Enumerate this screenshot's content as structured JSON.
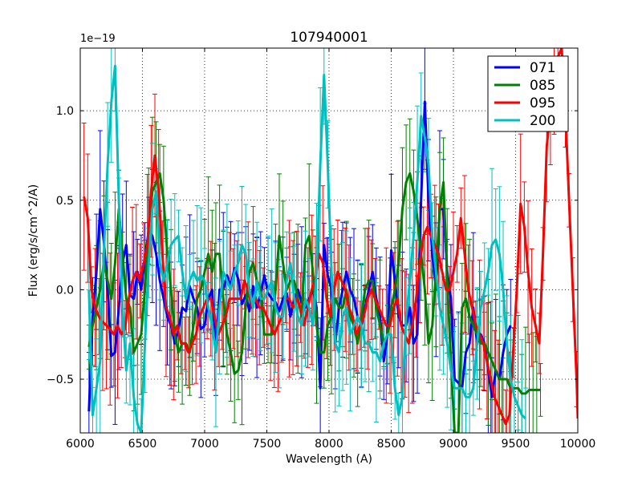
{
  "chart_data": {
    "type": "line",
    "title": "107940001",
    "xlabel": "Wavelength (A)",
    "ylabel": "Flux (erg/s/cm^2/A)",
    "offset_text": "1e−19",
    "xlim": [
      6000,
      10000
    ],
    "ylim": [
      -0.8,
      1.35
    ],
    "xticks": [
      6000,
      6500,
      7000,
      7500,
      8000,
      8500,
      9000,
      9500,
      10000
    ],
    "xtick_labels": [
      "6000",
      "6500",
      "7000",
      "7500",
      "8000",
      "8500",
      "9000",
      "9500",
      "10000"
    ],
    "yticks": [
      -0.5,
      0.0,
      0.5,
      1.0
    ],
    "ytick_labels": [
      "−0.5",
      "0.0",
      "0.5",
      "1.0"
    ],
    "grid": true,
    "legend_position": "top-right",
    "series": [
      {
        "name": "071",
        "color": "#0000ff",
        "x": [
          6070,
          6100,
          6130,
          6160,
          6190,
          6220,
          6250,
          6280,
          6310,
          6340,
          6370,
          6400,
          6430,
          6460,
          6490,
          6520,
          6550,
          6580,
          6610,
          6640,
          6670,
          6700,
          6730,
          6760,
          6790,
          6820,
          6850,
          6880,
          6910,
          6940,
          6970,
          7000,
          7030,
          7060,
          7090,
          7120,
          7150,
          7180,
          7210,
          7240,
          7270,
          7300,
          7330,
          7360,
          7390,
          7420,
          7450,
          7480,
          7510,
          7540,
          7570,
          7600,
          7630,
          7660,
          7690,
          7720,
          7750,
          7780,
          7810,
          7840,
          7870,
          7900,
          7930,
          7960,
          7990,
          8020,
          8050,
          8080,
          8110,
          8140,
          8170,
          8200,
          8230,
          8260,
          8290,
          8320,
          8350,
          8380,
          8410,
          8440,
          8470,
          8500,
          8530,
          8560,
          8590,
          8620,
          8650,
          8680,
          8710,
          8740,
          8770,
          8800,
          8830,
          8860,
          8890,
          8920,
          8950,
          8980,
          9010,
          9040,
          9070,
          9100,
          9130,
          9160,
          9190,
          9220,
          9250,
          9280,
          9310,
          9340,
          9370,
          9400,
          9430,
          9460
        ],
        "y": [
          -0.68,
          -0.15,
          0.1,
          0.45,
          0.27,
          0.0,
          -0.37,
          -0.35,
          -0.1,
          0.15,
          0.25,
          -0.03,
          -0.05,
          0.1,
          0.0,
          0.18,
          0.33,
          0.3,
          0.2,
          0.05,
          -0.05,
          -0.15,
          -0.2,
          -0.3,
          -0.22,
          -0.1,
          -0.12,
          0.02,
          -0.05,
          -0.1,
          -0.22,
          -0.2,
          -0.05,
          0.0,
          -0.35,
          0.0,
          0.0,
          0.08,
          0.02,
          0.12,
          0.06,
          -0.08,
          -0.03,
          -0.12,
          0.02,
          -0.1,
          -0.02,
          0.08,
          -0.02,
          -0.05,
          -0.07,
          -0.12,
          -0.05,
          -0.02,
          -0.15,
          -0.05,
          0.0,
          -0.07,
          -0.1,
          -0.05,
          0.0,
          -0.1,
          -0.55,
          0.25,
          0.08,
          0.0,
          -0.3,
          -0.1,
          0.0,
          0.1,
          0.0,
          -0.05,
          -0.15,
          -0.2,
          -0.1,
          0.0,
          0.1,
          -0.05,
          -0.15,
          -0.4,
          -0.25,
          0.22,
          0.05,
          -0.15,
          -0.2,
          -0.2,
          -0.1,
          -0.3,
          -0.25,
          0.5,
          1.05,
          0.5,
          0.2,
          0.0,
          0.45,
          0.45,
          0.1,
          -0.05,
          -0.5,
          -0.52,
          -0.55,
          -0.35,
          -0.3,
          -0.1,
          -0.3,
          -0.25,
          -0.3,
          -0.45,
          -0.6,
          -0.45,
          -0.5,
          -0.35,
          -0.25,
          -0.2
        ]
      },
      {
        "name": "085",
        "color": "#008000",
        "x": [
          6070,
          6100,
          6130,
          6160,
          6190,
          6220,
          6250,
          6280,
          6310,
          6340,
          6370,
          6400,
          6430,
          6460,
          6490,
          6520,
          6550,
          6580,
          6610,
          6640,
          6670,
          6700,
          6730,
          6760,
          6790,
          6820,
          6850,
          6880,
          6910,
          6940,
          6970,
          7000,
          7030,
          7060,
          7090,
          7120,
          7150,
          7180,
          7210,
          7240,
          7270,
          7300,
          7330,
          7360,
          7390,
          7420,
          7450,
          7480,
          7510,
          7540,
          7570,
          7600,
          7630,
          7660,
          7690,
          7720,
          7750,
          7780,
          7810,
          7840,
          7870,
          7900,
          7930,
          7960,
          7990,
          8020,
          8050,
          8080,
          8110,
          8140,
          8170,
          8200,
          8230,
          8260,
          8290,
          8320,
          8350,
          8380,
          8410,
          8440,
          8470,
          8500,
          8530,
          8560,
          8590,
          8620,
          8650,
          8680,
          8710,
          8740,
          8770,
          8800,
          8830,
          8860,
          8890,
          8920,
          8950,
          8980,
          9010,
          9040,
          9070,
          9100,
          9130,
          9160,
          9190,
          9220,
          9250,
          9280,
          9310,
          9340,
          9370,
          9400,
          9430,
          9460,
          9490,
          9520,
          9550,
          9580,
          9610,
          9640,
          9670,
          9700
        ],
        "y": [
          -0.32,
          -0.2,
          -0.1,
          0.0,
          0.15,
          0.05,
          -0.05,
          0.15,
          0.45,
          0.2,
          -0.05,
          -0.1,
          -0.35,
          -0.3,
          -0.25,
          0.0,
          0.35,
          0.55,
          0.6,
          0.65,
          0.5,
          0.2,
          0.0,
          -0.25,
          -0.35,
          -0.3,
          -0.3,
          -0.35,
          -0.2,
          -0.05,
          0.0,
          0.1,
          0.2,
          0.1,
          0.2,
          0.2,
          -0.05,
          -0.25,
          -0.35,
          -0.47,
          -0.45,
          -0.35,
          -0.1,
          0.1,
          0.15,
          0.05,
          0.0,
          -0.25,
          -0.25,
          -0.25,
          0.0,
          0.3,
          0.15,
          0.0,
          0.05,
          0.05,
          -0.05,
          -0.15,
          0.25,
          0.3,
          0.1,
          -0.2,
          -0.35,
          -0.35,
          -0.2,
          -0.15,
          -0.05,
          -0.1,
          -0.1,
          0.0,
          -0.15,
          -0.2,
          -0.3,
          -0.15,
          0.0,
          0.05,
          0.05,
          -0.1,
          -0.2,
          -0.3,
          -0.25,
          -0.1,
          0.0,
          0.15,
          0.45,
          0.6,
          0.65,
          0.55,
          0.4,
          0.2,
          0.0,
          -0.3,
          -0.2,
          0.1,
          0.45,
          0.6,
          0.05,
          -0.4,
          -0.8,
          -0.8,
          -0.1,
          -0.05,
          -0.15,
          -0.2,
          -0.25,
          -0.3,
          -0.3,
          -0.35,
          -0.4,
          -0.45,
          -0.5,
          -0.5,
          -0.5,
          -0.55,
          -0.55,
          -0.55,
          -0.58,
          -0.58,
          -0.56,
          -0.56,
          -0.56,
          -0.56
        ]
      },
      {
        "name": "095",
        "color": "#ff0000",
        "x": [
          6030,
          6060,
          6090,
          6120,
          6150,
          6180,
          6210,
          6240,
          6270,
          6300,
          6330,
          6360,
          6390,
          6420,
          6450,
          6480,
          6510,
          6540,
          6570,
          6600,
          6630,
          6660,
          6690,
          6720,
          6750,
          6780,
          6810,
          6840,
          6870,
          6900,
          6930,
          6960,
          6990,
          7020,
          7050,
          7080,
          7110,
          7140,
          7170,
          7200,
          7230,
          7260,
          7290,
          7320,
          7350,
          7380,
          7410,
          7440,
          7470,
          7500,
          7530,
          7560,
          7590,
          7620,
          7650,
          7680,
          7710,
          7740,
          7770,
          7800,
          7830,
          7860,
          7890,
          7920,
          7950,
          7980,
          8010,
          8040,
          8070,
          8100,
          8130,
          8160,
          8190,
          8220,
          8250,
          8280,
          8310,
          8340,
          8370,
          8400,
          8430,
          8460,
          8490,
          8520,
          8550,
          8580,
          8610,
          8640,
          8670,
          8700,
          8730,
          8760,
          8790,
          8820,
          8850,
          8880,
          8910,
          8940,
          8970,
          9000,
          9030,
          9060,
          9090,
          9120,
          9150,
          9180,
          9210,
          9240,
          9270,
          9300,
          9330,
          9360,
          9390,
          9420,
          9450,
          9480,
          9510,
          9540,
          9570,
          9600,
          9630,
          9660,
          9690,
          9720,
          9750,
          9780,
          9810,
          9840,
          9870,
          9900,
          9930,
          9960,
          9990,
          10000
        ],
        "y": [
          0.52,
          0.4,
          0.0,
          -0.1,
          -0.15,
          -0.18,
          -0.2,
          -0.22,
          -0.25,
          -0.2,
          -0.25,
          -0.22,
          -0.05,
          0.05,
          0.1,
          0.05,
          0.15,
          0.25,
          0.55,
          0.75,
          0.55,
          0.2,
          -0.1,
          -0.15,
          -0.25,
          -0.2,
          -0.3,
          -0.3,
          -0.35,
          -0.3,
          -0.25,
          -0.15,
          -0.1,
          -0.05,
          -0.05,
          -0.15,
          -0.25,
          -0.2,
          -0.15,
          -0.05,
          -0.05,
          -0.05,
          -0.05,
          0.05,
          0.0,
          -0.1,
          -0.05,
          -0.1,
          -0.1,
          -0.15,
          -0.2,
          -0.25,
          -0.2,
          -0.15,
          -0.05,
          -0.05,
          -0.1,
          -0.05,
          -0.1,
          -0.2,
          -0.1,
          0.0,
          0.05,
          0.2,
          0.15,
          -0.05,
          -0.15,
          0.0,
          0.1,
          0.05,
          0.0,
          -0.1,
          -0.15,
          -0.25,
          -0.2,
          -0.15,
          -0.05,
          0.0,
          -0.05,
          -0.1,
          -0.15,
          -0.2,
          -0.2,
          -0.1,
          -0.05,
          -0.2,
          -0.25,
          -0.3,
          -0.2,
          -0.05,
          0.15,
          0.3,
          0.35,
          0.3,
          0.25,
          0.2,
          0.1,
          0.0,
          0.0,
          0.1,
          0.2,
          0.4,
          0.2,
          0.0,
          -0.1,
          -0.2,
          -0.25,
          -0.3,
          -0.4,
          -0.5,
          -0.6,
          -0.65,
          -0.7,
          -0.75,
          -0.7,
          -0.35,
          0.0,
          0.48,
          0.35,
          0.1,
          -0.1,
          -0.2,
          -0.3,
          0.2,
          0.8,
          1.0,
          1.2,
          1.3,
          1.35,
          1.0,
          0.5,
          0.0,
          -0.5,
          -0.72
        ]
      },
      {
        "name": "200",
        "color": "#00bfbf",
        "x": [
          6070,
          6100,
          6130,
          6160,
          6190,
          6220,
          6250,
          6280,
          6310,
          6340,
          6370,
          6400,
          6430,
          6460,
          6490,
          6520,
          6550,
          6580,
          6610,
          6640,
          6670,
          6700,
          6730,
          6760,
          6790,
          6820,
          6850,
          6880,
          6910,
          6940,
          6970,
          7000,
          7030,
          7060,
          7090,
          7120,
          7150,
          7180,
          7210,
          7240,
          7270,
          7300,
          7330,
          7360,
          7390,
          7420,
          7450,
          7480,
          7510,
          7540,
          7570,
          7600,
          7630,
          7660,
          7690,
          7720,
          7750,
          7780,
          7810,
          7840,
          7870,
          7900,
          7930,
          7960,
          7990,
          8020,
          8050,
          8080,
          8110,
          8140,
          8170,
          8200,
          8230,
          8260,
          8290,
          8320,
          8350,
          8380,
          8410,
          8440,
          8470,
          8500,
          8530,
          8560,
          8590,
          8620,
          8650,
          8680,
          8710,
          8740,
          8770,
          8800,
          8830,
          8860,
          8890,
          8920,
          8950,
          8980,
          9010,
          9040,
          9070,
          9100,
          9130,
          9160,
          9190,
          9220,
          9250,
          9280,
          9310,
          9340,
          9370,
          9400,
          9430,
          9460,
          9490,
          9520,
          9550,
          9580
        ],
        "y": [
          0.0,
          -0.7,
          -0.55,
          -0.4,
          0.2,
          0.7,
          1.05,
          1.25,
          0.5,
          -0.1,
          -0.45,
          -0.3,
          -0.6,
          -0.75,
          -0.8,
          -0.3,
          0.15,
          0.45,
          0.55,
          0.15,
          0.05,
          0.15,
          0.25,
          0.28,
          0.3,
          0.1,
          -0.05,
          0.05,
          0.1,
          0.05,
          0.08,
          0.05,
          -0.1,
          -0.2,
          -0.35,
          -0.1,
          0.1,
          0.05,
          0.0,
          0.1,
          0.15,
          0.25,
          0.2,
          0.0,
          -0.1,
          0.05,
          -0.05,
          -0.05,
          0.0,
          0.05,
          -0.1,
          -0.15,
          -0.15,
          0.05,
          0.15,
          -0.05,
          -0.15,
          -0.2,
          -0.05,
          -0.1,
          -0.2,
          0.1,
          0.7,
          1.2,
          0.7,
          0.1,
          -0.3,
          -0.35,
          -0.15,
          -0.1,
          -0.25,
          -0.2,
          -0.15,
          -0.2,
          -0.3,
          -0.3,
          -0.35,
          -0.35,
          -0.4,
          -0.3,
          -0.25,
          -0.25,
          -0.55,
          -0.7,
          -0.6,
          -0.15,
          0.05,
          0.3,
          0.6,
          0.97,
          0.85,
          0.7,
          0.3,
          0.1,
          -0.1,
          -0.2,
          -0.3,
          -0.45,
          -0.55,
          -0.55,
          -0.55,
          -0.6,
          -0.6,
          -0.55,
          -0.3,
          -0.1,
          0.0,
          0.1,
          0.25,
          0.28,
          0.2,
          0.0,
          -0.3,
          -0.5,
          -0.6,
          -0.65,
          -0.7,
          -0.72
        ]
      }
    ]
  }
}
